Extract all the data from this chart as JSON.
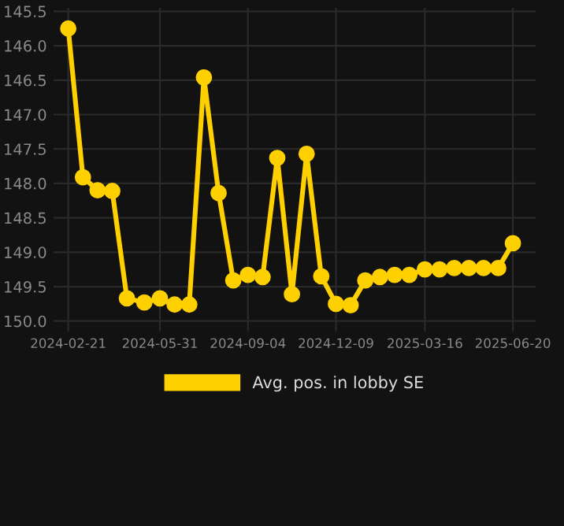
{
  "chart_data": {
    "type": "line",
    "x": [
      "2024-02-21",
      "2024-03-08",
      "2024-03-24",
      "2024-04-09",
      "2024-04-25",
      "2024-05-14",
      "2024-05-31",
      "2024-06-16",
      "2024-07-02",
      "2024-07-18",
      "2024-08-03",
      "2024-08-19",
      "2024-09-04",
      "2024-09-20",
      "2024-10-06",
      "2024-10-22",
      "2024-11-07",
      "2024-11-23",
      "2024-12-09",
      "2024-12-25",
      "2025-01-10",
      "2025-01-26",
      "2025-02-11",
      "2025-02-27",
      "2025-03-16",
      "2025-04-01",
      "2025-04-17",
      "2025-05-03",
      "2025-05-19",
      "2025-06-04",
      "2025-06-20"
    ],
    "series": [
      {
        "name": "Avg. pos. in lobby SE",
        "color": "#ffd000",
        "values": [
          145.75,
          147.91,
          148.1,
          148.11,
          149.67,
          149.73,
          149.67,
          149.76,
          149.76,
          146.46,
          148.14,
          149.41,
          149.33,
          149.36,
          147.63,
          149.61,
          147.57,
          149.35,
          149.75,
          149.77,
          149.41,
          149.36,
          149.33,
          149.33,
          149.25,
          149.25,
          149.23,
          149.23,
          149.23,
          149.23,
          148.87
        ]
      }
    ],
    "xlim": [
      "2024-02-05",
      "2025-07-15"
    ],
    "xticks": [
      "2024-02-21",
      "2024-05-31",
      "2024-09-04",
      "2024-12-09",
      "2025-03-16",
      "2025-06-20"
    ],
    "ylim": [
      150.15,
      145.45
    ],
    "yticks": [
      145.5,
      {
        "value": 146,
        "label": "146.0"
      },
      146.5,
      {
        "value": 147,
        "label": "147.0"
      },
      147.5,
      {
        "value": 148,
        "label": "148.0"
      },
      148.5,
      {
        "value": 149,
        "label": "149.0"
      },
      149.5,
      {
        "value": 150,
        "label": "150.0"
      }
    ],
    "grid": true,
    "legend": "bottom",
    "marker": "circle",
    "line_style": "solid"
  }
}
